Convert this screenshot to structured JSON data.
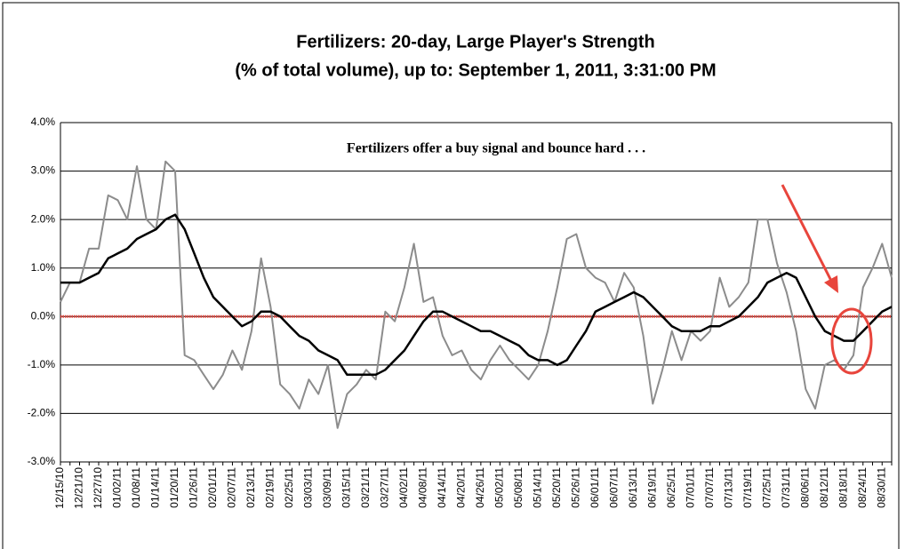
{
  "chart_data": {
    "type": "line",
    "title": "Fertilizers: 20-day, Large Player's Strength",
    "subtitle": "(% of total volume), up to: September 1, 2011, 3:31:00 PM",
    "annotation": "Fertilizers offer a buy signal and bounce hard . . .",
    "categories": [
      "12/15/10",
      null,
      "12/21/10",
      null,
      "12/27/10",
      null,
      "01/02/11",
      null,
      "01/08/11",
      null,
      "01/14/11",
      null,
      "01/20/11",
      null,
      "01/26/11",
      null,
      "02/01/11",
      null,
      "02/07/11",
      null,
      "02/13/11",
      null,
      "02/19/11",
      null,
      "02/25/11",
      null,
      "03/03/11",
      null,
      "03/09/11",
      null,
      "03/15/11",
      null,
      "03/21/11",
      null,
      "03/27/11",
      null,
      "04/02/11",
      null,
      "04/08/11",
      null,
      "04/14/11",
      null,
      "04/20/11",
      null,
      "04/26/11",
      null,
      "05/02/11",
      null,
      "05/08/11",
      null,
      "05/14/11",
      null,
      "05/20/11",
      null,
      "05/26/11",
      null,
      "06/01/11",
      null,
      "06/07/11",
      null,
      "06/13/11",
      null,
      "06/19/11",
      null,
      "06/25/11",
      null,
      "07/01/11",
      null,
      "07/07/11",
      null,
      "07/13/11",
      null,
      "07/19/11",
      null,
      "07/25/11",
      null,
      "07/31/11",
      null,
      "08/06/11",
      null,
      "08/12/11",
      null,
      "08/18/11",
      null,
      "08/24/11",
      null,
      "08/30/11",
      null
    ],
    "series": [
      {
        "color": "#8c8c8c",
        "width": 2,
        "values": [
          0.3,
          0.7,
          0.7,
          1.4,
          1.4,
          2.5,
          2.4,
          2.0,
          3.1,
          2.0,
          1.8,
          3.2,
          3.0,
          -0.8,
          -0.9,
          -1.2,
          -1.5,
          -1.2,
          -0.7,
          -1.1,
          -0.3,
          1.2,
          0.2,
          -1.4,
          -1.6,
          -1.9,
          -1.3,
          -1.6,
          -1.0,
          -2.3,
          -1.6,
          -1.4,
          -1.1,
          -1.3,
          0.1,
          -0.1,
          0.6,
          1.5,
          0.3,
          0.4,
          -0.4,
          -0.8,
          -0.7,
          -1.1,
          -1.3,
          -0.9,
          -0.6,
          -0.9,
          -1.1,
          -1.3,
          -1.0,
          -0.3,
          0.6,
          1.6,
          1.7,
          1.0,
          0.8,
          0.7,
          0.3,
          0.9,
          0.6,
          -0.4,
          -1.8,
          -1.1,
          -0.3,
          -0.9,
          -0.3,
          -0.5,
          -0.3,
          0.8,
          0.2,
          0.4,
          0.7,
          2.0,
          2.0,
          1.1,
          0.5,
          -0.3,
          -1.5,
          -1.9,
          -1.0,
          -0.9,
          -1.1,
          -0.8,
          0.6,
          1.0,
          1.5,
          0.8
        ]
      },
      {
        "color": "#000000",
        "width": 2.5,
        "values": [
          0.7,
          0.7,
          0.7,
          0.8,
          0.9,
          1.2,
          1.3,
          1.4,
          1.6,
          1.7,
          1.8,
          2.0,
          2.1,
          1.8,
          1.3,
          0.8,
          0.4,
          0.2,
          0.0,
          -0.2,
          -0.1,
          0.1,
          0.1,
          0.0,
          -0.2,
          -0.4,
          -0.5,
          -0.7,
          -0.8,
          -0.9,
          -1.2,
          -1.2,
          -1.2,
          -1.2,
          -1.1,
          -0.9,
          -0.7,
          -0.4,
          -0.1,
          0.1,
          0.1,
          0.0,
          -0.1,
          -0.2,
          -0.3,
          -0.3,
          -0.4,
          -0.5,
          -0.6,
          -0.8,
          -0.9,
          -0.9,
          -1.0,
          -0.9,
          -0.6,
          -0.3,
          0.1,
          0.2,
          0.3,
          0.4,
          0.5,
          0.4,
          0.2,
          0.0,
          -0.2,
          -0.3,
          -0.3,
          -0.3,
          -0.2,
          -0.2,
          -0.1,
          0.0,
          0.2,
          0.4,
          0.7,
          0.8,
          0.9,
          0.8,
          0.4,
          0.0,
          -0.3,
          -0.4,
          -0.5,
          -0.5,
          -0.3,
          -0.1,
          0.1,
          0.2
        ]
      }
    ],
    "ylim": [
      -3,
      4
    ],
    "yticks": [
      {
        "value": -3,
        "label": "-3.0%"
      },
      {
        "value": -2,
        "label": "-2.0%"
      },
      {
        "value": -1,
        "label": "-1.0%"
      },
      {
        "value": 0,
        "label": "0.0%"
      },
      {
        "value": 1,
        "label": "1.0%"
      },
      {
        "value": 2,
        "label": "2.0%"
      },
      {
        "value": 3,
        "label": "3.0%"
      },
      {
        "value": 4,
        "label": "4.0%"
      }
    ],
    "grid": true,
    "grid_color": "#000000",
    "reference_line": {
      "value": 0,
      "color": "#e8453c"
    },
    "annotation_color": "#e8453c"
  }
}
